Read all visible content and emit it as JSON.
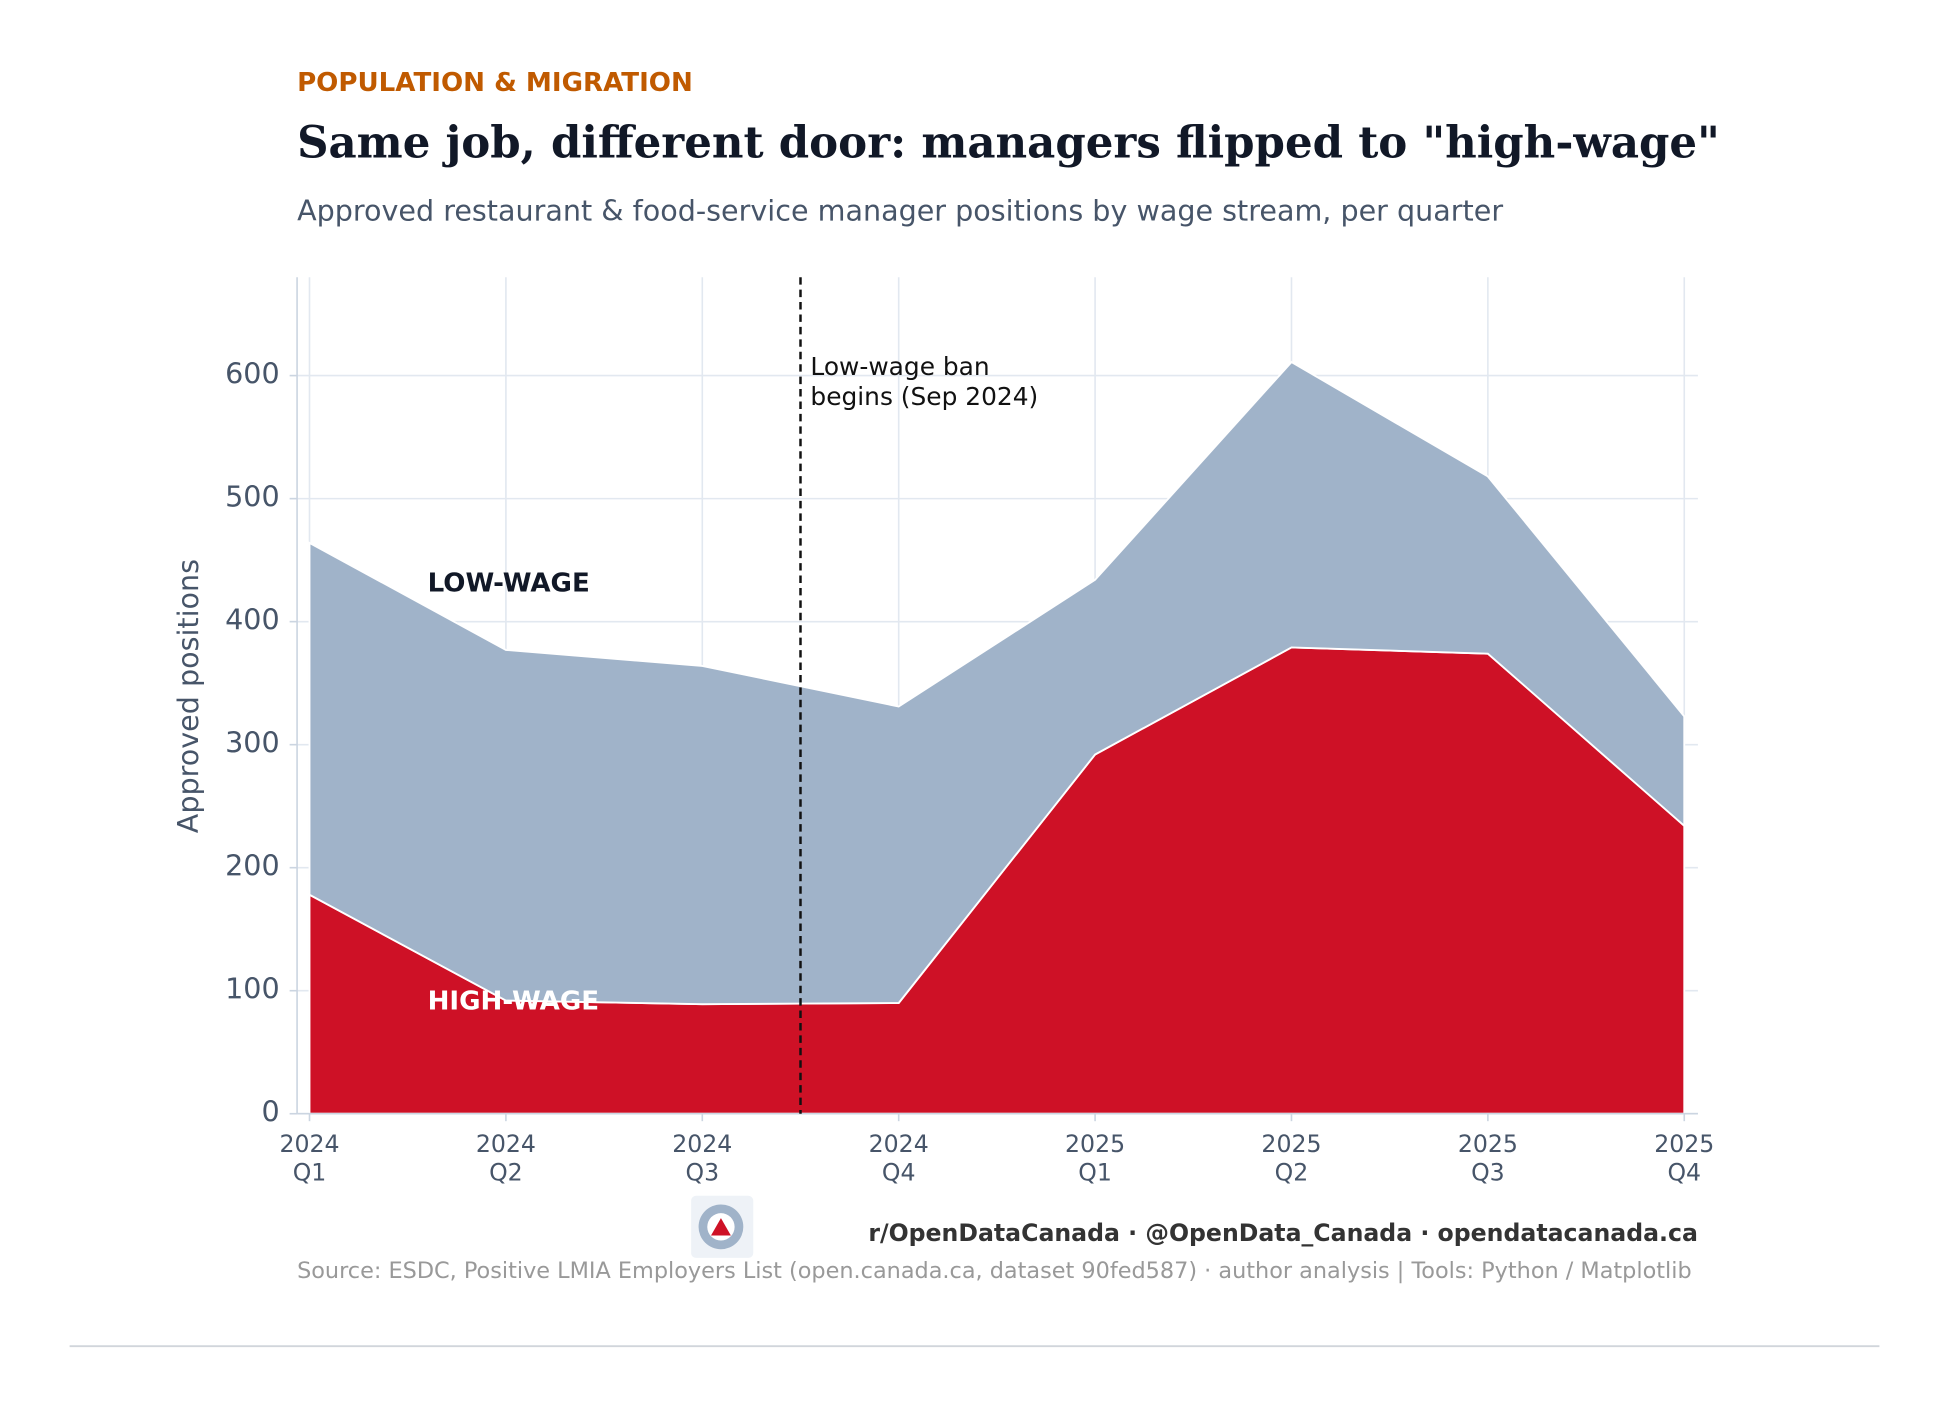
{
  "kicker": "POPULATION & MIGRATION",
  "credits": "r/OpenDataCanada  ·  @OpenData_Canada  ·  opendatacanada.ca",
  "source": "Source: ESDC, Positive LMIA Employers List (open.canada.ca, dataset 90fed587) · author analysis  |  Tools: Python / Matplotlib",
  "chart_data": {
    "type": "stacked-area",
    "title": "Same job, different door: managers flipped to \"high-wage\"",
    "subtitle": "Approved restaurant & food-service manager positions by wage stream, per quarter",
    "y_label": "Approved positions",
    "categories": [
      "2024 Q1",
      "2024 Q2",
      "2024 Q3",
      "2024 Q4",
      "2025 Q1",
      "2025 Q2",
      "2025 Q3",
      "2025 Q4"
    ],
    "series": [
      {
        "name": "HIGH-WAGE",
        "color": "#ce1126",
        "values": [
          178,
          92,
          89,
          90,
          292,
          379,
          374,
          234
        ]
      },
      {
        "name": "LOW-WAGE",
        "color": "#a0b3c9",
        "values": [
          286,
          285,
          275,
          241,
          142,
          232,
          144,
          89
        ]
      }
    ],
    "ylim": [
      0,
      680
    ],
    "yticks": [
      0,
      100,
      200,
      300,
      400,
      500,
      600
    ],
    "grid": true,
    "annotation": {
      "x": 2.5,
      "text": [
        "Low-wage ban",
        "begins (Sep 2024)"
      ]
    }
  }
}
